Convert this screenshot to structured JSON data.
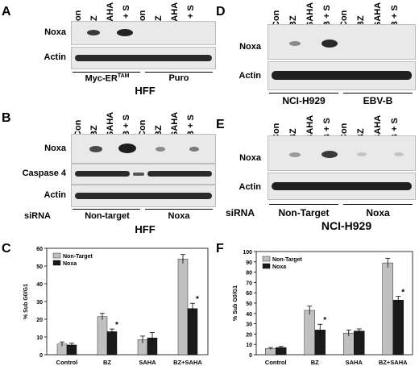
{
  "panels": {
    "A": {
      "letter": "A",
      "lanes": [
        "Con",
        "BZ",
        "SAHA",
        "B + S",
        "Con",
        "BZ",
        "SAHA",
        "B + S"
      ],
      "bands": [
        "Noxa",
        "Actin"
      ],
      "groups": [
        "Myc-ER",
        "Puro"
      ],
      "group0_sup": "TAM",
      "cell": "HFF"
    },
    "B": {
      "letter": "B",
      "lanes": [
        "Con",
        "BZ",
        "SAHA",
        "B + S",
        "Con",
        "BZ",
        "SAHA",
        "B + S"
      ],
      "bands": [
        "Noxa",
        "Caspase 4",
        "Actin"
      ],
      "sirna": "siRNA",
      "groups": [
        "Non-target",
        "Noxa"
      ],
      "cell": "HFF"
    },
    "D": {
      "letter": "D",
      "lanes": [
        "Con",
        "BZ",
        "SAHA",
        "B + S",
        "Con",
        "BZ",
        "SAHA",
        "B + S"
      ],
      "bands": [
        "Noxa",
        "Actin"
      ],
      "groups": [
        "NCI-H929",
        "EBV-B"
      ]
    },
    "E": {
      "letter": "E",
      "lanes": [
        "Con",
        "BZ",
        "SAHA",
        "B + S",
        "Con",
        "BZ",
        "SAHA",
        "B + S"
      ],
      "bands": [
        "Noxa",
        "Actin"
      ],
      "sirna": "siRNA",
      "groups": [
        "Non-Target",
        "Noxa"
      ],
      "cell": "NCI-H929"
    },
    "C": {
      "letter": "C"
    },
    "F": {
      "letter": "F"
    }
  },
  "chart_data": [
    {
      "type": "bar",
      "panel": "C",
      "categories": [
        "Control",
        "BZ",
        "SAHA",
        "BZ+SAHA"
      ],
      "series": [
        {
          "name": "Non-Target",
          "values": [
            6,
            21.5,
            8.5,
            54
          ],
          "errors": [
            1.2,
            1.8,
            2.0,
            2.5
          ],
          "color": "#c0c0c0"
        },
        {
          "name": "Noxa",
          "values": [
            5.5,
            13,
            9.5,
            26
          ],
          "errors": [
            1.0,
            1.5,
            3.0,
            3.0
          ],
          "color": "#1a1a1a"
        }
      ],
      "significance": [
        "",
        "*",
        "",
        "*"
      ],
      "ylabel": "% Sub G0/G1",
      "ylim": [
        0,
        60
      ],
      "yticks": [
        0,
        10,
        20,
        30,
        40,
        50,
        60
      ],
      "legend": "top-left"
    },
    {
      "type": "bar",
      "panel": "F",
      "categories": [
        "Control",
        "BZ",
        "SAHA",
        "BZ+SAHA"
      ],
      "series": [
        {
          "name": "Non-Target",
          "values": [
            6,
            43,
            21,
            89
          ],
          "errors": [
            1.0,
            4.0,
            3.0,
            4.5
          ],
          "color": "#c0c0c0"
        },
        {
          "name": "Noxa",
          "values": [
            7,
            24,
            23,
            53
          ],
          "errors": [
            1.0,
            5.5,
            2.0,
            3.5
          ],
          "color": "#1a1a1a"
        }
      ],
      "significance": [
        "",
        "*",
        "",
        "*"
      ],
      "ylabel": "% Sub G0/G1",
      "ylim": [
        0,
        100
      ],
      "yticks": [
        0,
        10,
        20,
        30,
        40,
        50,
        60,
        70,
        80,
        90,
        100
      ],
      "legend": "top-left"
    }
  ]
}
